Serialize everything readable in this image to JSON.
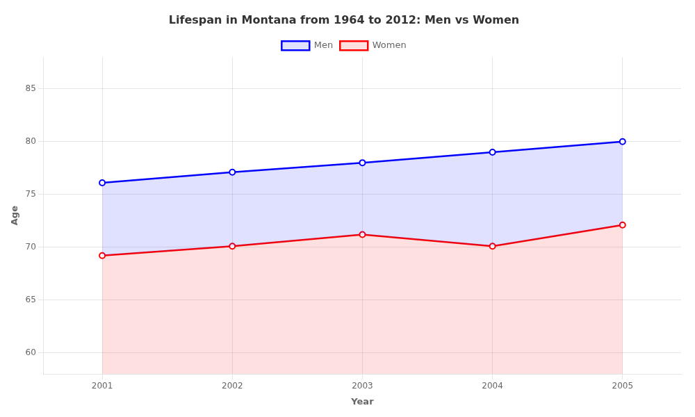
{
  "chart_data": {
    "type": "line",
    "title": "Lifespan in Montana from 1964 to 2012: Men vs Women",
    "xlabel": "Year",
    "ylabel": "Age",
    "x": [
      2001,
      2002,
      2003,
      2004,
      2005
    ],
    "series": [
      {
        "name": "Men",
        "color": "#0000ff",
        "marker": "circle",
        "values": [
          76.1,
          77.1,
          78.0,
          79.0,
          80.0
        ]
      },
      {
        "name": "Women",
        "color": "#ff0000",
        "marker": "circle",
        "values": [
          69.2,
          70.1,
          71.2,
          70.1,
          72.1
        ]
      }
    ],
    "xlim": [
      2000.55,
      2005.45
    ],
    "xticks": [
      2001,
      2002,
      2003,
      2004,
      2005
    ],
    "ylim": [
      58,
      88
    ],
    "yticks": [
      60,
      65,
      70,
      75,
      80,
      85
    ],
    "grid": true,
    "legend": "top"
  }
}
